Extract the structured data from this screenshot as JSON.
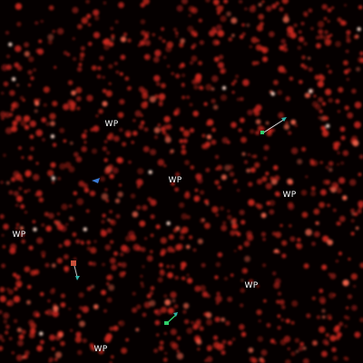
{
  "waypoints": [
    {
      "label": "WP"
    },
    {
      "label": "WP"
    },
    {
      "label": "WP"
    },
    {
      "label": "WP"
    },
    {
      "label": "WP"
    },
    {
      "label": "WP"
    }
  ],
  "colors": {
    "background": "#050000",
    "particle": "#d0281e",
    "particle_hot": "#ff6a50",
    "unit_teal": "#2fb3a8",
    "unit_green": "#2fd06a",
    "unit_blue": "#3a7bd5",
    "unit_red": "#c83a3a",
    "waypoint_text": "#ffffff"
  },
  "icons": {
    "unit_a": "arrow-unit-icon",
    "unit_b": "arrow-unit-icon",
    "unit_c": "arrow-unit-icon",
    "unit_d": "arrow-unit-icon"
  }
}
